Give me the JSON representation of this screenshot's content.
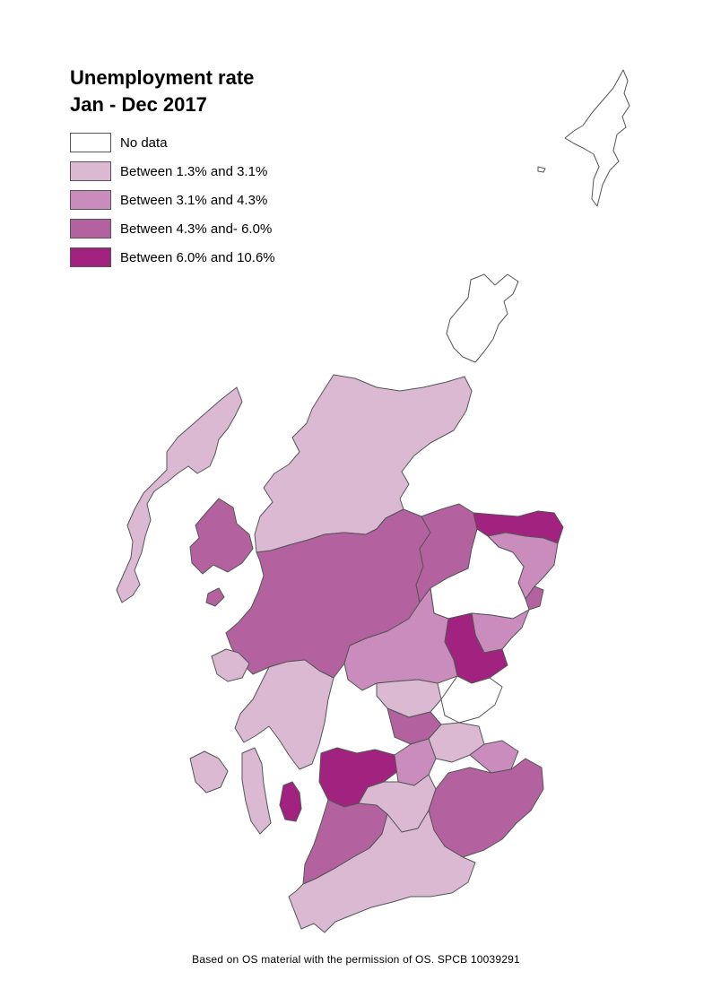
{
  "title": {
    "line1": "Unemployment rate",
    "line2": "Jan - Dec 2017"
  },
  "legend": [
    {
      "label": "No data",
      "color": "#ffffff"
    },
    {
      "label": "Between 1.3% and 3.1%",
      "color": "#dbb9d3"
    },
    {
      "label": "Between 3.1% and 4.3%",
      "color": "#c98cbc"
    },
    {
      "label": "Between 4.3% and- 6.0%",
      "color": "#b4619f"
    },
    {
      "label": "Between 6.0% and 10.6%",
      "color": "#a1237f"
    }
  ],
  "footer": "Based on OS material with the permission of OS. SPCB 10039291"
}
